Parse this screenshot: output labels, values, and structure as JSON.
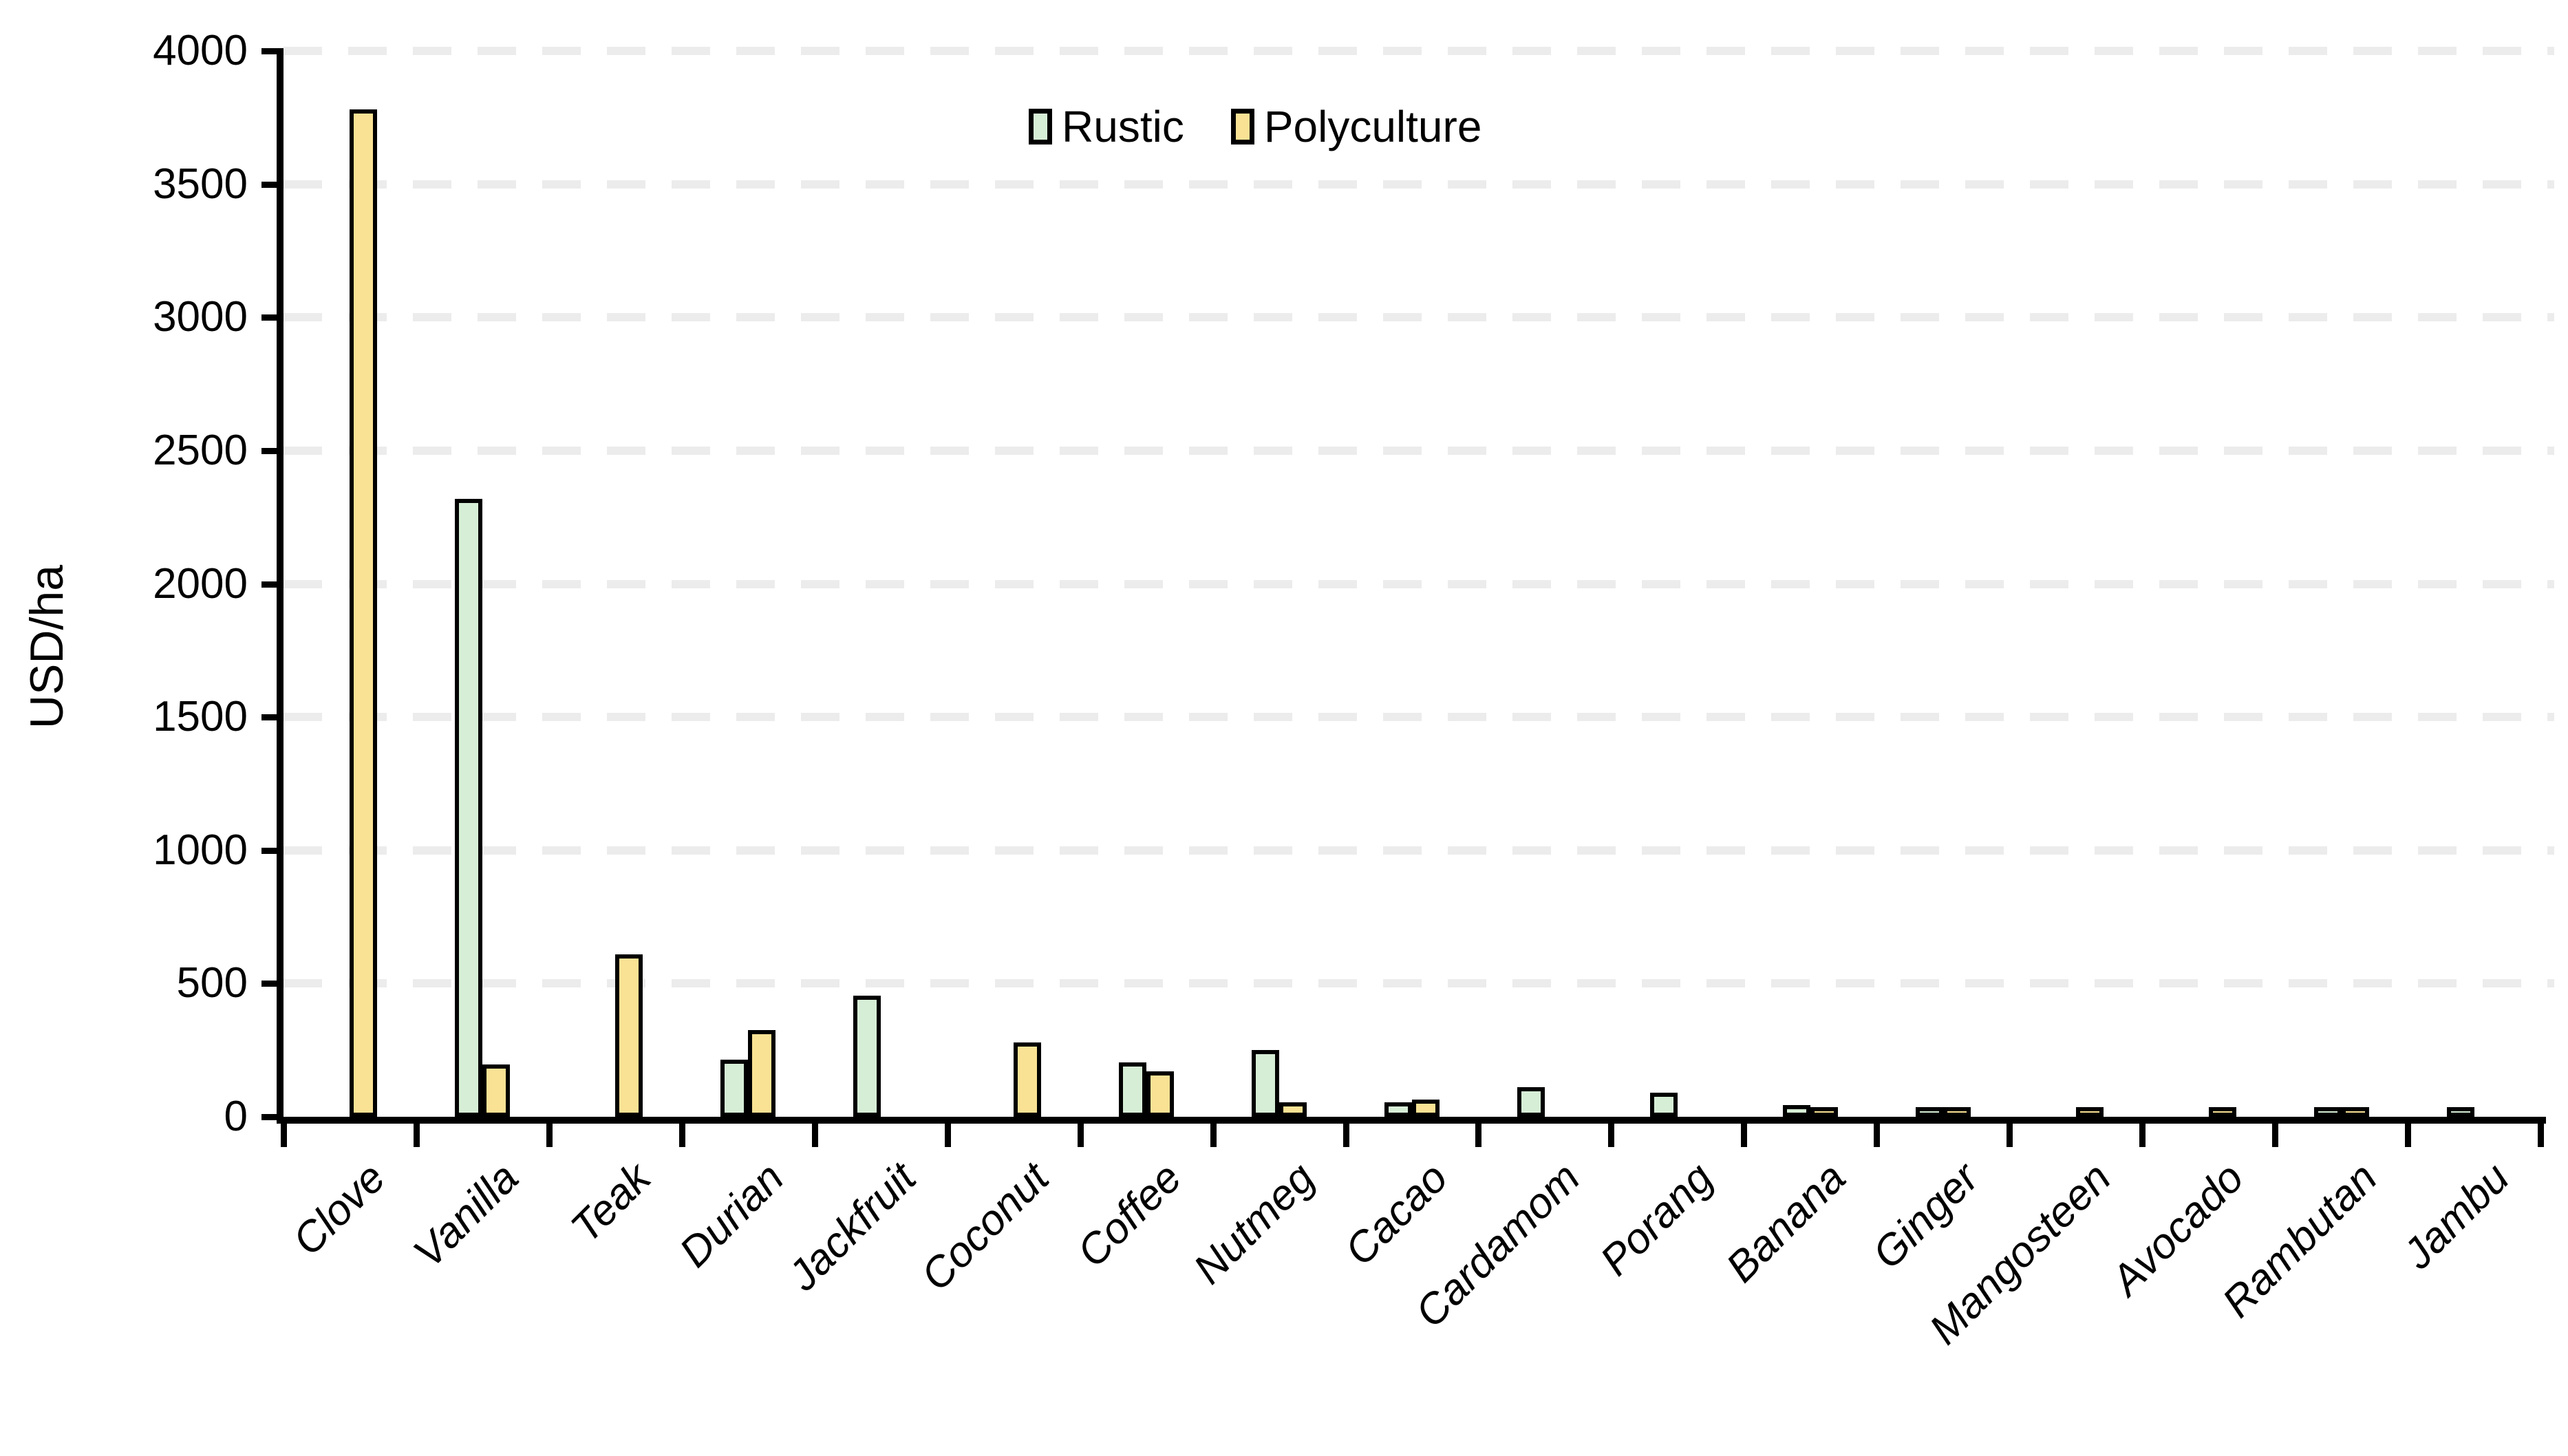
{
  "chart_data": {
    "type": "bar",
    "title": "",
    "ylabel": "USD/ha",
    "xlabel": "",
    "ylim": [
      0,
      4000
    ],
    "ytick_step": 500,
    "ytick_labels": [
      "0",
      "500",
      "1000",
      "1500",
      "2000",
      "2500",
      "3000",
      "3500",
      "4000"
    ],
    "grid": "horizontal dashed gridlines on",
    "legend_position": "top-center",
    "categories": [
      "Clove",
      "Vanilla",
      "Teak",
      "Durian",
      "Jackfruit",
      "Coconut",
      "Coffee",
      "Nutmeg",
      "Cacao",
      "Cardamom",
      "Porang",
      "Banana",
      "Ginger",
      "Mangosteen",
      "Avocado",
      "Rambutan",
      "Jambu"
    ],
    "series": [
      {
        "name": "Rustic",
        "color": "#d6eed6",
        "values": [
          0,
          2320,
          0,
          215,
          455,
          0,
          205,
          250,
          55,
          110,
          90,
          45,
          10,
          0,
          0,
          5,
          8
        ]
      },
      {
        "name": "Polyculture",
        "color": "#fae294",
        "values": [
          3780,
          195,
          610,
          325,
          0,
          280,
          170,
          55,
          65,
          0,
          0,
          25,
          30,
          25,
          15,
          10,
          0
        ]
      }
    ],
    "bar_border_color": "#000000",
    "axis_color": "#000000",
    "gridline_color": "#ececec"
  }
}
